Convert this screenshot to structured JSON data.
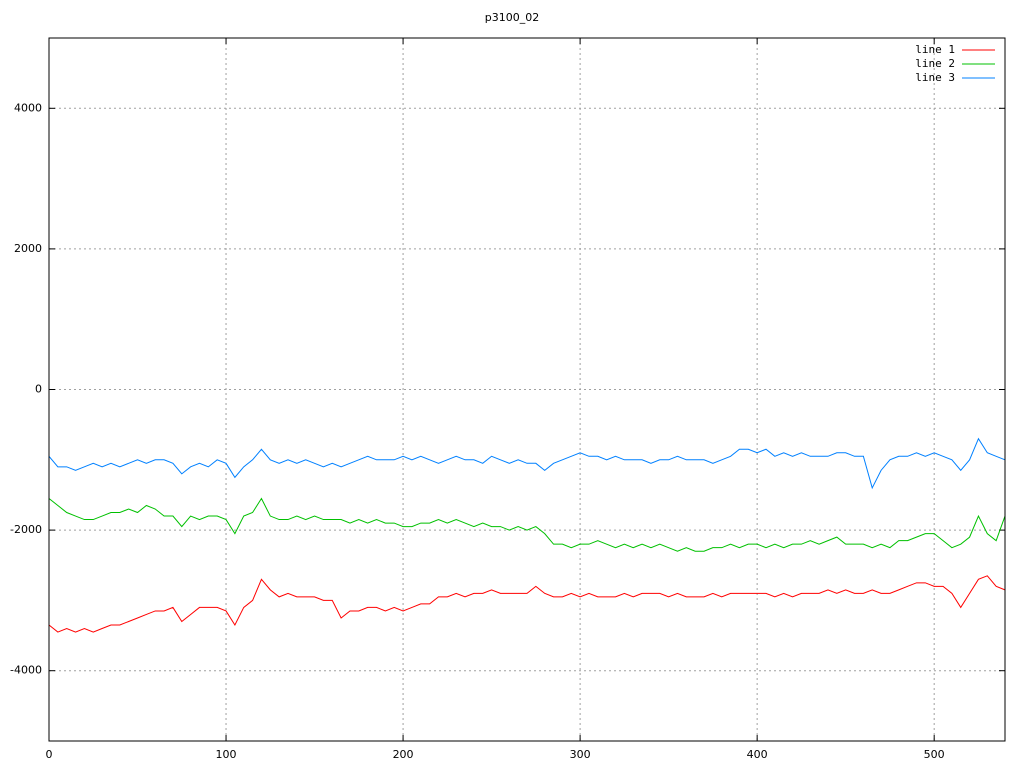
{
  "chart_data": {
    "type": "line",
    "title": "p3100_02",
    "x": [
      0,
      5,
      10,
      15,
      20,
      25,
      30,
      35,
      40,
      45,
      50,
      55,
      60,
      65,
      70,
      75,
      80,
      85,
      90,
      95,
      100,
      105,
      110,
      115,
      120,
      125,
      130,
      135,
      140,
      145,
      150,
      155,
      160,
      165,
      170,
      175,
      180,
      185,
      190,
      195,
      200,
      205,
      210,
      215,
      220,
      225,
      230,
      235,
      240,
      245,
      250,
      255,
      260,
      265,
      270,
      275,
      280,
      285,
      290,
      295,
      300,
      305,
      310,
      315,
      320,
      325,
      330,
      335,
      340,
      345,
      350,
      355,
      360,
      365,
      370,
      375,
      380,
      385,
      390,
      395,
      400,
      405,
      410,
      415,
      420,
      425,
      430,
      435,
      440,
      445,
      450,
      455,
      460,
      465,
      470,
      475,
      480,
      485,
      490,
      495,
      500,
      505,
      510,
      515,
      520,
      525,
      530,
      535,
      540
    ],
    "series": [
      {
        "name": "line 1",
        "color": "#ff0000",
        "values": [
          -3350,
          -3450,
          -3400,
          -3450,
          -3400,
          -3450,
          -3400,
          -3350,
          -3350,
          -3300,
          -3250,
          -3200,
          -3150,
          -3150,
          -3100,
          -3300,
          -3200,
          -3100,
          -3100,
          -3100,
          -3150,
          -3350,
          -3100,
          -3000,
          -2700,
          -2850,
          -2950,
          -2900,
          -2950,
          -2950,
          -2950,
          -3000,
          -3000,
          -3250,
          -3150,
          -3150,
          -3100,
          -3100,
          -3150,
          -3100,
          -3150,
          -3100,
          -3050,
          -3050,
          -2950,
          -2950,
          -2900,
          -2950,
          -2900,
          -2900,
          -2850,
          -2900,
          -2900,
          -2900,
          -2900,
          -2800,
          -2900,
          -2950,
          -2950,
          -2900,
          -2950,
          -2900,
          -2950,
          -2950,
          -2950,
          -2900,
          -2950,
          -2900,
          -2900,
          -2900,
          -2950,
          -2900,
          -2950,
          -2950,
          -2950,
          -2900,
          -2950,
          -2900,
          -2900,
          -2900,
          -2900,
          -2900,
          -2950,
          -2900,
          -2950,
          -2900,
          -2900,
          -2900,
          -2850,
          -2900,
          -2850,
          -2900,
          -2900,
          -2850,
          -2900,
          -2900,
          -2850,
          -2800,
          -2750,
          -2750,
          -2800,
          -2800,
          -2900,
          -3100,
          -2900,
          -2700,
          -2650,
          -2800,
          -2850
        ]
      },
      {
        "name": "line 2",
        "color": "#00c000",
        "values": [
          -1550,
          -1650,
          -1750,
          -1800,
          -1850,
          -1850,
          -1800,
          -1750,
          -1750,
          -1700,
          -1750,
          -1650,
          -1700,
          -1800,
          -1800,
          -1950,
          -1800,
          -1850,
          -1800,
          -1800,
          -1850,
          -2050,
          -1800,
          -1750,
          -1550,
          -1800,
          -1850,
          -1850,
          -1800,
          -1850,
          -1800,
          -1850,
          -1850,
          -1850,
          -1900,
          -1850,
          -1900,
          -1850,
          -1900,
          -1900,
          -1950,
          -1950,
          -1900,
          -1900,
          -1850,
          -1900,
          -1850,
          -1900,
          -1950,
          -1900,
          -1950,
          -1950,
          -2000,
          -1950,
          -2000,
          -1950,
          -2050,
          -2200,
          -2200,
          -2250,
          -2200,
          -2200,
          -2150,
          -2200,
          -2250,
          -2200,
          -2250,
          -2200,
          -2250,
          -2200,
          -2250,
          -2300,
          -2250,
          -2300,
          -2300,
          -2250,
          -2250,
          -2200,
          -2250,
          -2200,
          -2200,
          -2250,
          -2200,
          -2250,
          -2200,
          -2200,
          -2150,
          -2200,
          -2150,
          -2100,
          -2200,
          -2200,
          -2200,
          -2250,
          -2200,
          -2250,
          -2150,
          -2150,
          -2100,
          -2050,
          -2050,
          -2150,
          -2250,
          -2200,
          -2100,
          -1800,
          -2050,
          -2150,
          -1800
        ]
      },
      {
        "name": "line 3",
        "color": "#0080ff",
        "values": [
          -950,
          -1100,
          -1100,
          -1150,
          -1100,
          -1050,
          -1100,
          -1050,
          -1100,
          -1050,
          -1000,
          -1050,
          -1000,
          -1000,
          -1050,
          -1200,
          -1100,
          -1050,
          -1100,
          -1000,
          -1050,
          -1250,
          -1100,
          -1000,
          -850,
          -1000,
          -1050,
          -1000,
          -1050,
          -1000,
          -1050,
          -1100,
          -1050,
          -1100,
          -1050,
          -1000,
          -950,
          -1000,
          -1000,
          -1000,
          -950,
          -1000,
          -950,
          -1000,
          -1050,
          -1000,
          -950,
          -1000,
          -1000,
          -1050,
          -950,
          -1000,
          -1050,
          -1000,
          -1050,
          -1050,
          -1150,
          -1050,
          -1000,
          -950,
          -900,
          -950,
          -950,
          -1000,
          -950,
          -1000,
          -1000,
          -1000,
          -1050,
          -1000,
          -1000,
          -950,
          -1000,
          -1000,
          -1000,
          -1050,
          -1000,
          -950,
          -850,
          -850,
          -900,
          -850,
          -950,
          -900,
          -950,
          -900,
          -950,
          -950,
          -950,
          -900,
          -900,
          -950,
          -950,
          -1400,
          -1150,
          -1000,
          -950,
          -950,
          -900,
          -950,
          -900,
          -950,
          -1000,
          -1150,
          -1000,
          -700,
          -900,
          -950,
          -1000
        ]
      }
    ],
    "xlim": [
      0,
      540
    ],
    "ylim": [
      -5000,
      5000
    ],
    "xticks": [
      0,
      100,
      200,
      300,
      400,
      500
    ],
    "yticks": [
      -4000,
      -2000,
      0,
      2000,
      4000
    ],
    "grid": true,
    "legend": "top-right"
  }
}
